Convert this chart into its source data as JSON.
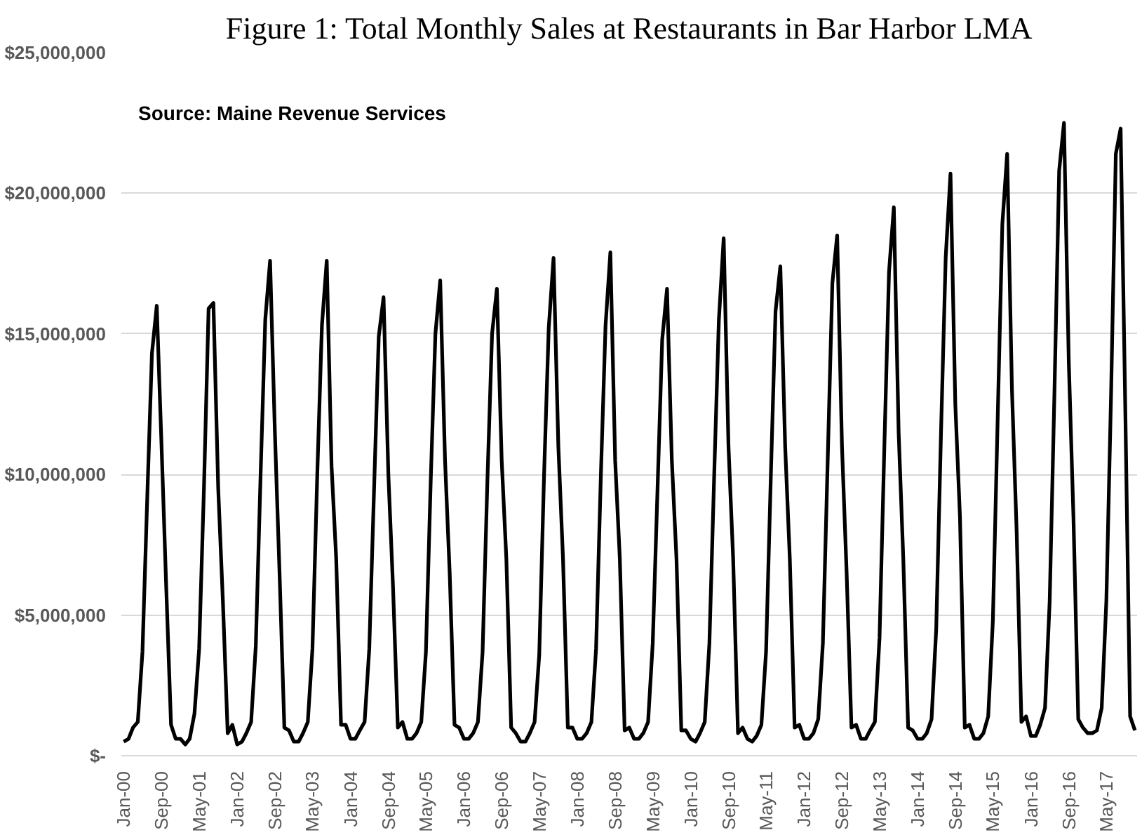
{
  "chart_data": {
    "type": "line",
    "title": "Figure 1: Total Monthly Sales at Restaurants in Bar Harbor LMA",
    "annotations": [
      "Source: Maine Revenue Services"
    ],
    "grid": "y",
    "marker": "none",
    "line_style": "solid",
    "xlim": [
      "1999-12-17",
      "2017-11-15"
    ],
    "ylim": [
      0,
      25000000
    ],
    "yticks": [
      {
        "value": 0,
        "label": "$-"
      },
      {
        "value": 5000000,
        "label": "$5,000,000"
      },
      {
        "value": 10000000,
        "label": "$10,000,000"
      },
      {
        "value": 15000000,
        "label": "$15,000,000"
      },
      {
        "value": 20000000,
        "label": "$20,000,000"
      },
      {
        "value": 25000000,
        "label": "$25,000,000"
      }
    ],
    "xticks": [
      {
        "value": "2000-01",
        "label": "Jan-00"
      },
      {
        "value": "2000-09",
        "label": "Sep-00"
      },
      {
        "value": "2001-05",
        "label": "May-01"
      },
      {
        "value": "2002-01",
        "label": "Jan-02"
      },
      {
        "value": "2002-09",
        "label": "Sep-02"
      },
      {
        "value": "2003-05",
        "label": "May-03"
      },
      {
        "value": "2004-01",
        "label": "Jan-04"
      },
      {
        "value": "2004-09",
        "label": "Sep-04"
      },
      {
        "value": "2005-05",
        "label": "May-05"
      },
      {
        "value": "2006-01",
        "label": "Jan-06"
      },
      {
        "value": "2006-09",
        "label": "Sep-06"
      },
      {
        "value": "2007-05",
        "label": "May-07"
      },
      {
        "value": "2008-01",
        "label": "Jan-08"
      },
      {
        "value": "2008-09",
        "label": "Sep-08"
      },
      {
        "value": "2009-05",
        "label": "May-09"
      },
      {
        "value": "2010-01",
        "label": "Jan-10"
      },
      {
        "value": "2010-09",
        "label": "Sep-10"
      },
      {
        "value": "2011-05",
        "label": "May-11"
      },
      {
        "value": "2012-01",
        "label": "Jan-12"
      },
      {
        "value": "2012-09",
        "label": "Sep-12"
      },
      {
        "value": "2013-05",
        "label": "May-13"
      },
      {
        "value": "2014-01",
        "label": "Jan-14"
      },
      {
        "value": "2014-09",
        "label": "Sep-14"
      },
      {
        "value": "2015-05",
        "label": "May-15"
      },
      {
        "value": "2016-01",
        "label": "Jan-16"
      },
      {
        "value": "2016-09",
        "label": "Sep-16"
      },
      {
        "value": "2017-05",
        "label": "May-17"
      }
    ],
    "x": [
      "2000-01",
      "2000-02",
      "2000-03",
      "2000-04",
      "2000-05",
      "2000-06",
      "2000-07",
      "2000-08",
      "2000-09",
      "2000-10",
      "2000-11",
      "2000-12",
      "2001-01",
      "2001-02",
      "2001-03",
      "2001-04",
      "2001-05",
      "2001-06",
      "2001-07",
      "2001-08",
      "2001-09",
      "2001-10",
      "2001-11",
      "2001-12",
      "2002-01",
      "2002-02",
      "2002-03",
      "2002-04",
      "2002-05",
      "2002-06",
      "2002-07",
      "2002-08",
      "2002-09",
      "2002-10",
      "2002-11",
      "2002-12",
      "2003-01",
      "2003-02",
      "2003-03",
      "2003-04",
      "2003-05",
      "2003-06",
      "2003-07",
      "2003-08",
      "2003-09",
      "2003-10",
      "2003-11",
      "2003-12",
      "2004-01",
      "2004-02",
      "2004-03",
      "2004-04",
      "2004-05",
      "2004-06",
      "2004-07",
      "2004-08",
      "2004-09",
      "2004-10",
      "2004-11",
      "2004-12",
      "2005-01",
      "2005-02",
      "2005-03",
      "2005-04",
      "2005-05",
      "2005-06",
      "2005-07",
      "2005-08",
      "2005-09",
      "2005-10",
      "2005-11",
      "2005-12",
      "2006-01",
      "2006-02",
      "2006-03",
      "2006-04",
      "2006-05",
      "2006-06",
      "2006-07",
      "2006-08",
      "2006-09",
      "2006-10",
      "2006-11",
      "2006-12",
      "2007-01",
      "2007-02",
      "2007-03",
      "2007-04",
      "2007-05",
      "2007-06",
      "2007-07",
      "2007-08",
      "2007-09",
      "2007-10",
      "2007-11",
      "2007-12",
      "2008-01",
      "2008-02",
      "2008-03",
      "2008-04",
      "2008-05",
      "2008-06",
      "2008-07",
      "2008-08",
      "2008-09",
      "2008-10",
      "2008-11",
      "2008-12",
      "2009-01",
      "2009-02",
      "2009-03",
      "2009-04",
      "2009-05",
      "2009-06",
      "2009-07",
      "2009-08",
      "2009-09",
      "2009-10",
      "2009-11",
      "2009-12",
      "2010-01",
      "2010-02",
      "2010-03",
      "2010-04",
      "2010-05",
      "2010-06",
      "2010-07",
      "2010-08",
      "2010-09",
      "2010-10",
      "2010-11",
      "2010-12",
      "2011-01",
      "2011-02",
      "2011-03",
      "2011-04",
      "2011-05",
      "2011-06",
      "2011-07",
      "2011-08",
      "2011-09",
      "2011-10",
      "2011-11",
      "2011-12",
      "2012-01",
      "2012-02",
      "2012-03",
      "2012-04",
      "2012-05",
      "2012-06",
      "2012-07",
      "2012-08",
      "2012-09",
      "2012-10",
      "2012-11",
      "2012-12",
      "2013-01",
      "2013-02",
      "2013-03",
      "2013-04",
      "2013-05",
      "2013-06",
      "2013-07",
      "2013-08",
      "2013-09",
      "2013-10",
      "2013-11",
      "2013-12",
      "2014-01",
      "2014-02",
      "2014-03",
      "2014-04",
      "2014-05",
      "2014-06",
      "2014-07",
      "2014-08",
      "2014-09",
      "2014-10",
      "2014-11",
      "2014-12",
      "2015-01",
      "2015-02",
      "2015-03",
      "2015-04",
      "2015-05",
      "2015-06",
      "2015-07",
      "2015-08",
      "2015-09",
      "2015-10",
      "2015-11",
      "2015-12",
      "2016-01",
      "2016-02",
      "2016-03",
      "2016-04",
      "2016-05",
      "2016-06",
      "2016-07",
      "2016-08",
      "2016-09",
      "2016-10",
      "2016-11",
      "2016-12",
      "2017-01",
      "2017-02",
      "2017-03",
      "2017-04",
      "2017-05",
      "2017-06",
      "2017-07",
      "2017-08",
      "2017-09",
      "2017-10",
      "2017-11"
    ],
    "series": [
      {
        "color": "#000000",
        "values": [
          500000,
          600000,
          1000000,
          1200000,
          3700000,
          9200000,
          14300000,
          16000000,
          11000000,
          6000000,
          1100000,
          600000,
          600000,
          400000,
          600000,
          1500000,
          3800000,
          9500000,
          15900000,
          16100000,
          9500000,
          5500000,
          800000,
          1100000,
          400000,
          500000,
          800000,
          1200000,
          3900000,
          10000000,
          15500000,
          17600000,
          11500000,
          6500000,
          1000000,
          900000,
          500000,
          500000,
          800000,
          1200000,
          3800000,
          10000000,
          15300000,
          17600000,
          10300000,
          7000000,
          1100000,
          1100000,
          600000,
          600000,
          900000,
          1200000,
          3800000,
          9500000,
          14900000,
          16300000,
          10000000,
          6000000,
          1000000,
          1200000,
          600000,
          600000,
          800000,
          1200000,
          3700000,
          9800000,
          15000000,
          16900000,
          10500000,
          6500000,
          1100000,
          1000000,
          600000,
          600000,
          800000,
          1200000,
          3700000,
          9800000,
          15000000,
          16600000,
          10500000,
          7000000,
          1000000,
          800000,
          500000,
          500000,
          800000,
          1200000,
          3600000,
          10000000,
          15200000,
          17700000,
          11000000,
          7000000,
          1000000,
          1000000,
          600000,
          600000,
          800000,
          1200000,
          3800000,
          10000000,
          15300000,
          17900000,
          10500000,
          7000000,
          900000,
          1000000,
          600000,
          600000,
          800000,
          1200000,
          4000000,
          9500000,
          14800000,
          16600000,
          10500000,
          7000000,
          900000,
          900000,
          600000,
          500000,
          800000,
          1200000,
          4000000,
          10000000,
          15500000,
          18400000,
          11000000,
          7000000,
          800000,
          1000000,
          600000,
          500000,
          700000,
          1100000,
          3700000,
          10000000,
          15800000,
          17400000,
          11000000,
          7000000,
          1000000,
          1100000,
          600000,
          600000,
          800000,
          1300000,
          4000000,
          10500000,
          16800000,
          18500000,
          11000000,
          6500000,
          1000000,
          1100000,
          600000,
          600000,
          900000,
          1200000,
          4200000,
          11000000,
          17200000,
          19500000,
          11500000,
          7000000,
          1000000,
          900000,
          600000,
          600000,
          800000,
          1300000,
          4500000,
          11500000,
          17700000,
          20700000,
          12500000,
          8500000,
          1000000,
          1100000,
          600000,
          600000,
          800000,
          1400000,
          4800000,
          12000000,
          18900000,
          21400000,
          13000000,
          8000000,
          1200000,
          1400000,
          700000,
          700000,
          1100000,
          1700000,
          5500000,
          13000000,
          20800000,
          22500000,
          14000000,
          8500000,
          1300000,
          1000000,
          800000,
          800000,
          900000,
          1700000,
          5500000,
          13000000,
          21400000,
          22300000,
          12000000,
          1400000,
          900000
        ]
      }
    ]
  }
}
